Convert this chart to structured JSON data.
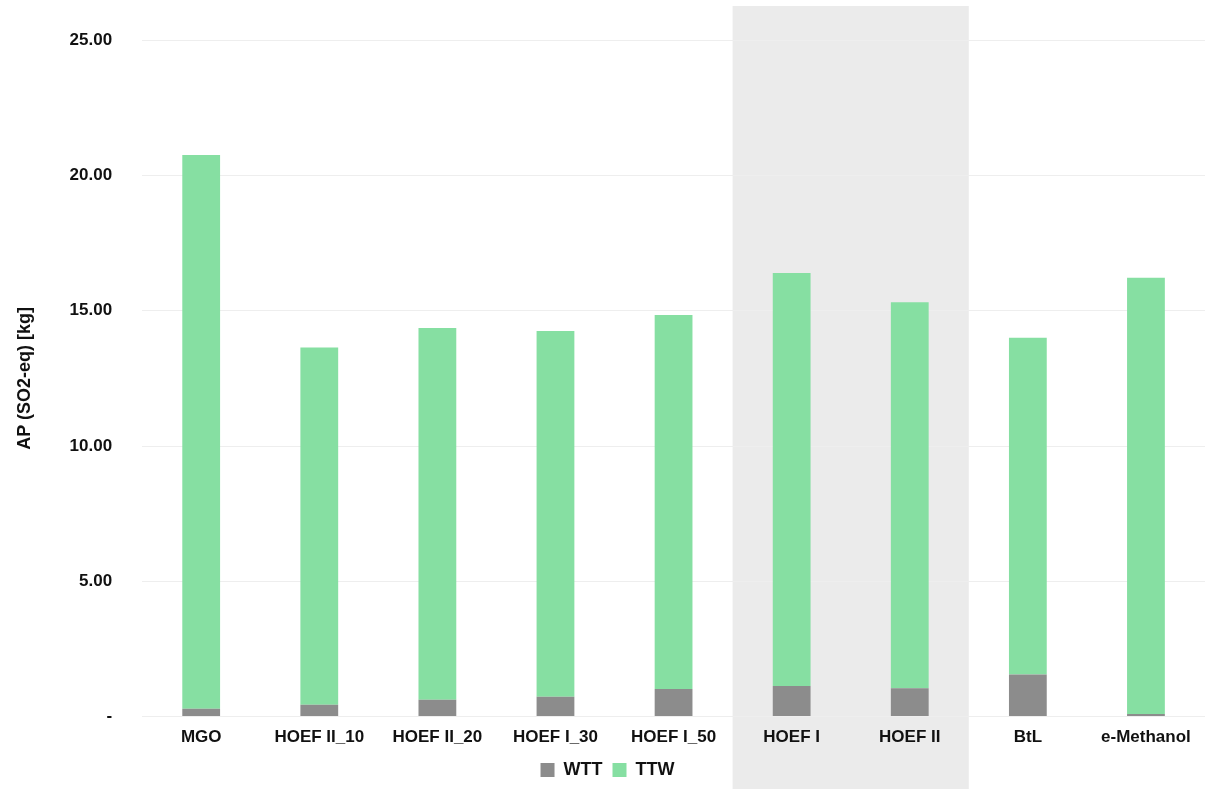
{
  "chart_data": {
    "type": "bar",
    "stacked": true,
    "ylabel": "AP (SO2-eq) [kg]",
    "categories": [
      "MGO",
      "HOEF II_10",
      "HOEF II_20",
      "HOEF I_30",
      "HOEF I_50",
      "HOEF I",
      "HOEF II",
      "BtL",
      "e-Methanol"
    ],
    "series": [
      {
        "name": "WTT",
        "color": "#8c8c8c",
        "values": [
          0.29,
          0.44,
          0.62,
          0.73,
          1.02,
          1.13,
          1.05,
          1.56,
          0.1
        ]
      },
      {
        "name": "TTW",
        "color": "#86dfa2",
        "values": [
          20.47,
          13.2,
          13.74,
          13.52,
          13.82,
          15.27,
          14.26,
          12.44,
          16.12
        ]
      }
    ],
    "ylim": [
      0,
      25
    ],
    "yticks": [
      {
        "value": 0,
        "label": "-"
      },
      {
        "value": 5,
        "label": "5.00"
      },
      {
        "value": 10,
        "label": "10.00"
      },
      {
        "value": 15,
        "label": "15.00"
      },
      {
        "value": 20,
        "label": "20.00"
      },
      {
        "value": 25,
        "label": "25.00"
      }
    ],
    "bands": [
      {
        "axis": "x",
        "from": "HOEF I",
        "to": "HOEF II",
        "color": "#ebebeb"
      }
    ],
    "grid": "y",
    "legend": "bottom"
  }
}
